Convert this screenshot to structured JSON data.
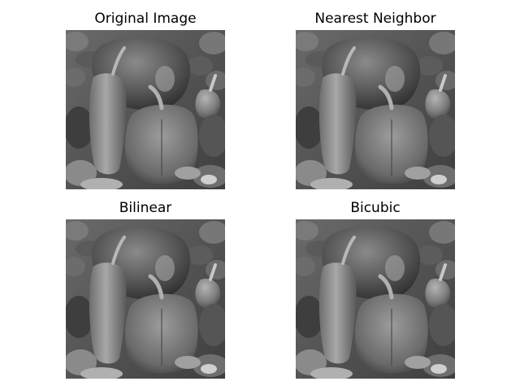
{
  "figure": {
    "panels": [
      {
        "title": "Original Image",
        "image": "grayscale-peppers-photo"
      },
      {
        "title": "Nearest Neighbor",
        "image": "grayscale-peppers-photo"
      },
      {
        "title": "Bilinear",
        "image": "grayscale-peppers-photo"
      },
      {
        "title": "Bicubic",
        "image": "grayscale-peppers-photo"
      }
    ]
  }
}
